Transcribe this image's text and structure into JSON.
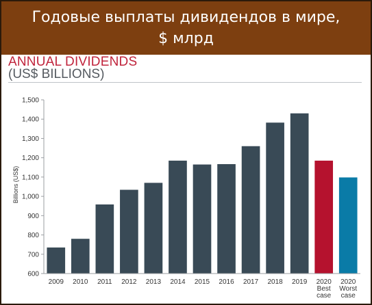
{
  "banner": {
    "line1": "Годовые выплаты дивидендов в мире,",
    "line2": "$ млрд"
  },
  "chart_data": {
    "type": "bar",
    "title": "ANNUAL DIVIDENDS",
    "subtitle": "(US$ BILLIONS)",
    "ylabel": "Billions (US$)",
    "xlabel": "",
    "ylim": [
      600,
      1500
    ],
    "yticks": [
      "600",
      "700",
      "800",
      "900",
      "1,000",
      "1,100",
      "1,200",
      "1,300",
      "1,400",
      "1,500"
    ],
    "ytick_values": [
      600,
      700,
      800,
      900,
      1000,
      1100,
      1200,
      1300,
      1400,
      1500
    ],
    "categories": [
      [
        "2009"
      ],
      [
        "2010"
      ],
      [
        "2011"
      ],
      [
        "2012"
      ],
      [
        "2013"
      ],
      [
        "2014"
      ],
      [
        "2015"
      ],
      [
        "2016"
      ],
      [
        "2017"
      ],
      [
        "2018"
      ],
      [
        "2019"
      ],
      [
        "2020",
        "Best",
        "case"
      ],
      [
        "2020",
        "Worst",
        "case"
      ]
    ],
    "values": [
      735,
      780,
      958,
      1034,
      1070,
      1185,
      1165,
      1167,
      1260,
      1382,
      1430,
      1185,
      1098
    ],
    "colors": [
      "#394a56",
      "#394a56",
      "#394a56",
      "#394a56",
      "#394a56",
      "#394a56",
      "#394a56",
      "#394a56",
      "#394a56",
      "#394a56",
      "#394a56",
      "#b5122e",
      "#0a7ba7"
    ],
    "grid": false,
    "legend": "none"
  }
}
